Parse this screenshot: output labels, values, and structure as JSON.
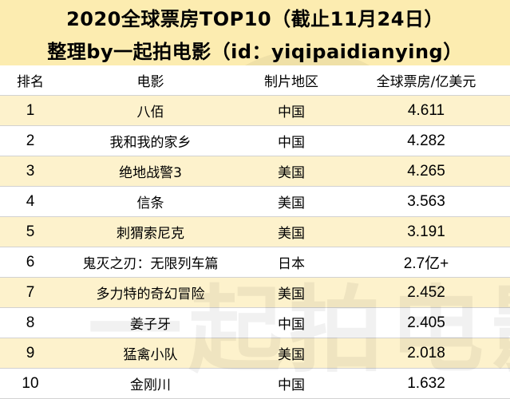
{
  "title_line1": "2020全球票房TOP10（截止11月24日）",
  "title_line2": "整理by一起拍电影（id：yiqipaidianying）",
  "columns": [
    "排名",
    "电影",
    "制片地区",
    "全球票房/亿美元"
  ],
  "rows": [
    {
      "rank": "1",
      "film": "八佰",
      "region": "中国",
      "box": "4.611"
    },
    {
      "rank": "2",
      "film": "我和我的家乡",
      "region": "中国",
      "box": "4.282"
    },
    {
      "rank": "3",
      "film": "绝地战警3",
      "region": "美国",
      "box": "4.265"
    },
    {
      "rank": "4",
      "film": "信条",
      "region": "美国",
      "box": "3.563"
    },
    {
      "rank": "5",
      "film": "刺猬索尼克",
      "region": "美国",
      "box": "3.191"
    },
    {
      "rank": "6",
      "film": "鬼灭之刃：无限列车篇",
      "region": "日本",
      "box": "2.7亿+"
    },
    {
      "rank": "7",
      "film": "多力特的奇幻冒险",
      "region": "美国",
      "box": "2.452"
    },
    {
      "rank": "8",
      "film": "姜子牙",
      "region": "中国",
      "box": "2.405"
    },
    {
      "rank": "9",
      "film": "猛禽小队",
      "region": "美国",
      "box": "2.018"
    },
    {
      "rank": "10",
      "film": "金刚川",
      "region": "中国",
      "box": "1.632"
    }
  ],
  "watermark_text": "一起拍电影",
  "colors": {
    "title_bg": "#fcecb0",
    "row_shade": "#fdf2cc"
  }
}
